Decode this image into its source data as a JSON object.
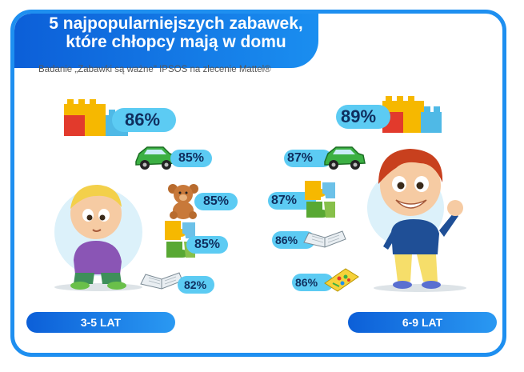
{
  "header": {
    "title_line1": "5 najpopularniejszych zabawek,",
    "title_line2": "które chłopcy mają w domu",
    "subtitle": "Badanie „Zabawki są ważne\" IPSOS na zlecenie Mattel®"
  },
  "groups": [
    {
      "label": "3-5 LAT",
      "items": [
        {
          "icon": "blocks-icon",
          "value": "86%"
        },
        {
          "icon": "car-icon",
          "value": "85%"
        },
        {
          "icon": "teddy-bear-icon",
          "value": "85%"
        },
        {
          "icon": "puzzle-icon",
          "value": "85%"
        },
        {
          "icon": "book-icon",
          "value": "82%"
        }
      ]
    },
    {
      "label": "6-9 LAT",
      "items": [
        {
          "icon": "blocks-icon",
          "value": "89%"
        },
        {
          "icon": "car-icon",
          "value": "87%"
        },
        {
          "icon": "puzzle-icon",
          "value": "87%"
        },
        {
          "icon": "book-icon",
          "value": "86%"
        },
        {
          "icon": "board-game-icon",
          "value": "86%"
        }
      ]
    }
  ],
  "chart_data": {
    "type": "bar",
    "title": "5 najpopularniejszych zabawek, które chłopcy mają w domu",
    "categories": [
      "3-5 LAT",
      "6-9 LAT"
    ],
    "series": [
      {
        "values": [
          86,
          89
        ]
      },
      {
        "values": [
          85,
          87
        ]
      },
      {
        "values": [
          85,
          null
        ]
      },
      {
        "values": [
          85,
          87
        ]
      },
      {
        "values": [
          82,
          86
        ]
      },
      {
        "values": [
          null,
          86
        ]
      }
    ]
  },
  "colors": {
    "frame": "#1e8ff0",
    "title_bar": "#0c5fd8",
    "pill": "#5ccbf3",
    "pill_text": "#0f2e5e"
  }
}
